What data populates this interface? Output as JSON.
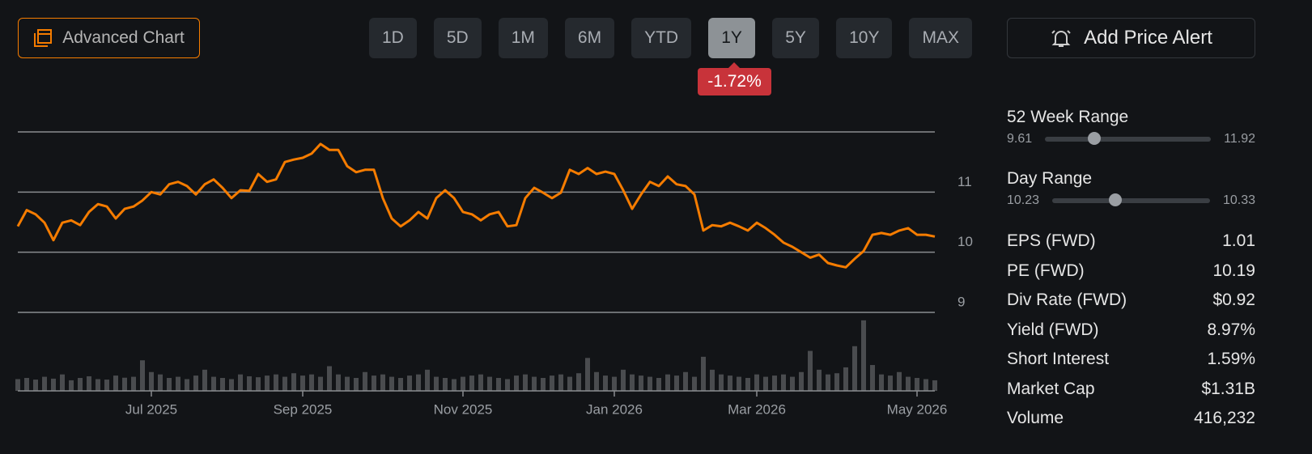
{
  "toolbar": {
    "advanced": "Advanced Chart",
    "periods": [
      "1D",
      "5D",
      "1M",
      "6M",
      "YTD",
      "1Y",
      "5Y",
      "10Y",
      "MAX"
    ],
    "active": 5,
    "change": "-1.72%",
    "alert": "Add Price Alert"
  },
  "stats": {
    "week52": {
      "label": "52 Week Range",
      "low": 9.61,
      "high": 11.92,
      "current": 10.3
    },
    "day": {
      "label": "Day Range",
      "low": 10.23,
      "high": 10.33,
      "current": 10.27
    },
    "items": [
      [
        "EPS (FWD)",
        "1.01"
      ],
      [
        "PE (FWD)",
        "10.19"
      ],
      [
        "Div Rate (FWD)",
        "$0.92"
      ],
      [
        "Yield (FWD)",
        "8.97%"
      ],
      [
        "Short Interest",
        "1.59%"
      ],
      [
        "Market Cap",
        "$1.31B"
      ],
      [
        "Volume",
        "416,232"
      ]
    ]
  },
  "chart_data": {
    "type": "line",
    "categories": [
      null,
      null,
      null,
      null,
      null,
      null,
      null,
      null,
      null,
      null,
      null,
      null,
      null,
      null,
      null,
      "Jul 2025",
      null,
      null,
      null,
      null,
      null,
      null,
      null,
      null,
      null,
      null,
      null,
      null,
      null,
      null,
      null,
      null,
      "Sep 2025",
      null,
      null,
      null,
      null,
      null,
      null,
      null,
      null,
      null,
      null,
      null,
      null,
      null,
      null,
      null,
      null,
      null,
      "Nov 2025",
      null,
      null,
      null,
      null,
      null,
      null,
      null,
      null,
      null,
      null,
      null,
      null,
      null,
      null,
      null,
      null,
      "Jan 2026",
      null,
      null,
      null,
      null,
      null,
      null,
      null,
      null,
      null,
      null,
      null,
      null,
      null,
      null,
      null,
      "Mar 2026",
      null,
      null,
      null,
      null,
      null,
      null,
      null,
      null,
      null,
      null,
      null,
      null,
      null,
      null,
      null,
      null,
      null,
      "May 2026",
      null,
      null
    ],
    "series": [
      {
        "color": "#f57c00",
        "values": [
          10.43,
          10.7,
          10.63,
          10.49,
          10.2,
          10.49,
          10.53,
          10.45,
          10.67,
          10.8,
          10.76,
          10.56,
          10.72,
          10.76,
          10.86,
          11.0,
          10.96,
          11.13,
          11.17,
          11.1,
          10.96,
          11.13,
          11.21,
          11.07,
          10.9,
          11.03,
          11.02,
          11.3,
          11.17,
          11.21,
          11.5,
          11.54,
          11.57,
          11.64,
          11.8,
          11.7,
          11.7,
          11.43,
          11.33,
          11.37,
          11.37,
          10.9,
          10.56,
          10.43,
          10.53,
          10.67,
          10.56,
          10.9,
          11.03,
          10.9,
          10.67,
          10.63,
          10.53,
          10.63,
          10.67,
          10.43,
          10.45,
          10.9,
          11.07,
          10.99,
          10.9,
          10.99,
          11.37,
          11.3,
          11.4,
          11.3,
          11.34,
          11.3,
          11.03,
          10.72,
          10.96,
          11.17,
          11.1,
          11.26,
          11.13,
          11.1,
          10.96,
          10.36,
          10.45,
          10.43,
          10.49,
          10.43,
          10.36,
          10.49,
          10.4,
          10.29,
          10.16,
          10.09,
          10.0,
          9.91,
          9.96,
          9.82,
          9.78,
          9.75,
          9.89,
          10.02,
          10.29,
          10.32,
          10.29,
          10.36,
          10.4,
          10.29,
          10.29,
          10.26
        ]
      },
      {
        "type": "bar",
        "axis": "y2",
        "color": "#4a4c4f",
        "values": [
          500000,
          550000,
          480000,
          600000,
          520000,
          700000,
          450000,
          550000,
          620000,
          500000,
          480000,
          650000,
          560000,
          600000,
          1300000,
          800000,
          700000,
          550000,
          600000,
          500000,
          650000,
          900000,
          600000,
          550000,
          500000,
          700000,
          620000,
          580000,
          650000,
          700000,
          600000,
          750000,
          650000,
          700000,
          600000,
          1050000,
          700000,
          600000,
          550000,
          800000,
          650000,
          700000,
          600000,
          550000,
          650000,
          700000,
          900000,
          600000,
          550000,
          500000,
          600000,
          650000,
          700000,
          600000,
          550000,
          500000,
          650000,
          700000,
          600000,
          550000,
          650000,
          700000,
          600000,
          750000,
          1400000,
          800000,
          650000,
          600000,
          900000,
          700000,
          650000,
          600000,
          550000,
          700000,
          650000,
          800000,
          600000,
          1450000,
          900000,
          700000,
          650000,
          600000,
          550000,
          700000,
          600000,
          650000,
          700000,
          600000,
          800000,
          1700000,
          900000,
          700000,
          750000,
          1000000,
          1900000,
          3000000,
          1100000,
          700000,
          650000,
          800000,
          600000,
          550000,
          500000,
          450000
        ]
      }
    ],
    "ylim": [
      9,
      12
    ],
    "yticks": [
      9,
      10,
      11
    ],
    "y2lim": [
      0,
      3200000
    ],
    "grid": true
  }
}
